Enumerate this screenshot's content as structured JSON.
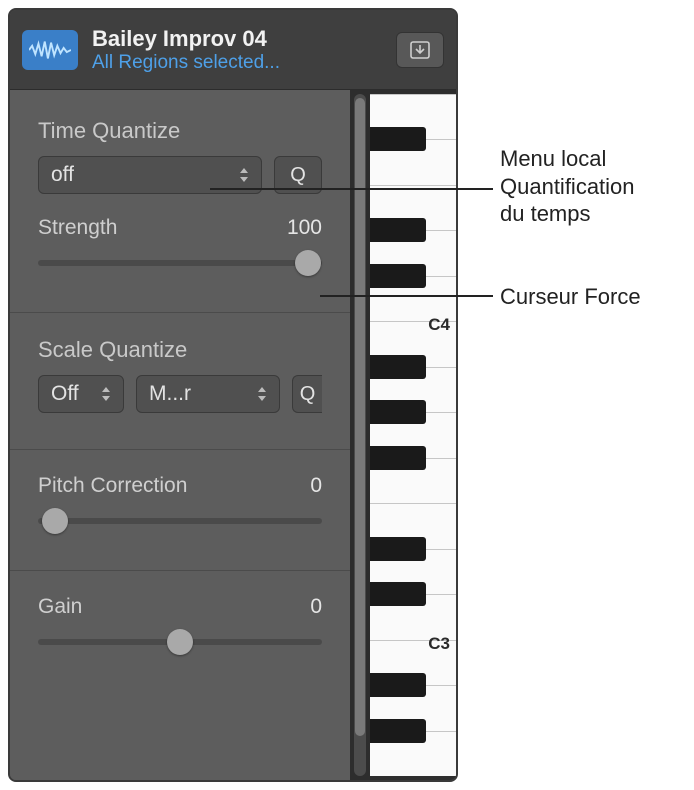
{
  "header": {
    "title": "Bailey Improv 04",
    "subtitle": "All Regions selected..."
  },
  "timeQuantize": {
    "title": "Time Quantize",
    "selectValue": "off",
    "qButton": "Q",
    "strengthLabel": "Strength",
    "strengthValue": "100",
    "strengthPosPct": 95
  },
  "scaleQuantize": {
    "title": "Scale Quantize",
    "select1": "Off",
    "select2": "M...r",
    "qButton": "Q"
  },
  "pitchCorrection": {
    "label": "Pitch Correction",
    "value": "0",
    "posPct": 6
  },
  "gain": {
    "label": "Gain",
    "value": "0",
    "posPct": 50
  },
  "keyboard": {
    "octavesVisible": 2.1,
    "labels": [
      {
        "text": "C4",
        "whiteIndexFromTop": 5
      },
      {
        "text": "C3",
        "whiteIndexFromTop": 12
      }
    ]
  },
  "callouts": {
    "quantMenu": {
      "line1": "Menu local",
      "line2": "Quantification",
      "line3": "du temps"
    },
    "strength": {
      "text": "Curseur Force"
    }
  },
  "colors": {
    "panelBg": "#5d5d5d",
    "headerBg": "#3f3f3f",
    "accentBlue": "#4ea0e8",
    "iconBlue": "#3a7fc8",
    "controlBg": "#505050",
    "thumb": "#a9a9a9",
    "text": "#cfcfcf"
  }
}
